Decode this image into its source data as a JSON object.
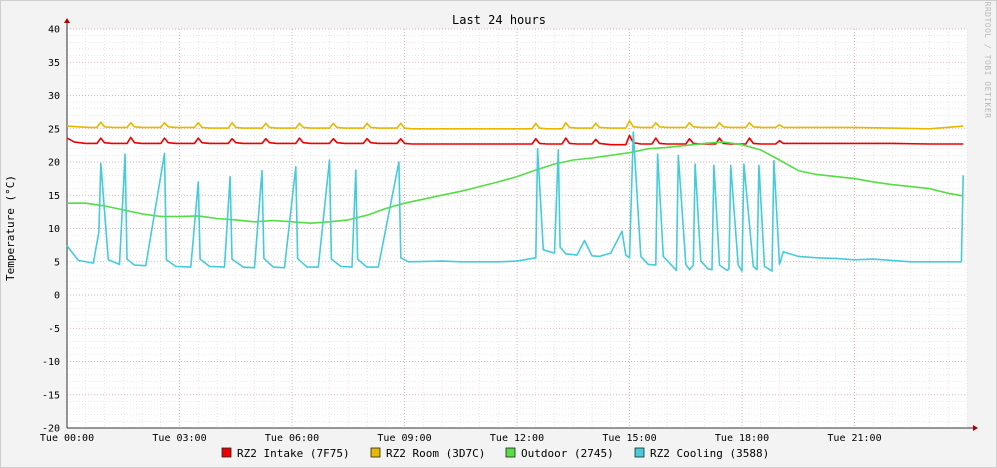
{
  "chart_data": {
    "type": "line",
    "title": "Last 24 hours",
    "ylabel": "Temperature (°C)",
    "xlabel": "",
    "watermark": "RRDTOOL / TOBI OETIKER",
    "ylim": [
      -20,
      40
    ],
    "yticks": [
      -20,
      -15,
      -10,
      -5,
      0,
      5,
      10,
      15,
      20,
      25,
      30,
      35,
      40
    ],
    "xlim": [
      0,
      24
    ],
    "xticks": [
      {
        "hour": 0,
        "label": "Tue 00:00"
      },
      {
        "hour": 3,
        "label": "Tue 03:00"
      },
      {
        "hour": 6,
        "label": "Tue 06:00"
      },
      {
        "hour": 9,
        "label": "Tue 09:00"
      },
      {
        "hour": 12,
        "label": "Tue 12:00"
      },
      {
        "hour": 15,
        "label": "Tue 15:00"
      },
      {
        "hour": 18,
        "label": "Tue 18:00"
      },
      {
        "hour": 21,
        "label": "Tue 21:00"
      }
    ],
    "grid": true,
    "legend_position": "bottom",
    "series": [
      {
        "name": "RZ2 Intake (7F75)",
        "color": "#ee0000",
        "x": [
          0,
          0.2,
          0.5,
          0.8,
          0.9,
          1.0,
          1.2,
          1.6,
          1.7,
          1.8,
          2.0,
          2.5,
          2.6,
          2.7,
          2.9,
          3.4,
          3.5,
          3.6,
          3.8,
          4.3,
          4.4,
          4.5,
          4.7,
          5.2,
          5.3,
          5.4,
          5.6,
          6.1,
          6.2,
          6.3,
          6.5,
          7.0,
          7.1,
          7.2,
          7.4,
          7.9,
          8.0,
          8.1,
          8.3,
          8.8,
          8.9,
          9.0,
          9.2,
          10,
          11,
          12.4,
          12.5,
          12.6,
          12.8,
          13.2,
          13.3,
          13.4,
          13.6,
          14.0,
          14.1,
          14.2,
          14.5,
          14.9,
          15.0,
          15.1,
          15.3,
          15.6,
          15.7,
          15.8,
          16.0,
          16.5,
          16.6,
          16.7,
          16.9,
          17.3,
          17.4,
          17.5,
          17.7,
          18.1,
          18.2,
          18.3,
          18.5,
          18.9,
          19.0,
          19.1,
          19.3,
          20,
          21,
          22,
          23,
          23.9
        ],
        "values": [
          23.6,
          23.0,
          22.8,
          22.8,
          23.6,
          22.9,
          22.8,
          22.8,
          23.7,
          22.9,
          22.8,
          22.8,
          23.6,
          22.9,
          22.8,
          22.8,
          23.6,
          22.9,
          22.8,
          22.8,
          23.5,
          22.9,
          22.8,
          22.8,
          23.5,
          22.9,
          22.8,
          22.8,
          23.6,
          22.9,
          22.8,
          22.8,
          23.5,
          22.9,
          22.8,
          22.8,
          23.5,
          22.9,
          22.8,
          22.8,
          23.5,
          22.8,
          22.7,
          22.7,
          22.7,
          22.7,
          23.5,
          22.8,
          22.7,
          22.7,
          23.6,
          22.8,
          22.7,
          22.7,
          23.4,
          22.8,
          22.6,
          22.6,
          24.0,
          22.9,
          22.7,
          22.7,
          23.6,
          22.8,
          22.7,
          22.7,
          23.5,
          22.8,
          22.7,
          22.7,
          23.6,
          22.8,
          22.7,
          22.7,
          23.6,
          22.8,
          22.7,
          22.7,
          23.2,
          22.8,
          22.8,
          22.8,
          22.8,
          22.8,
          22.7,
          22.7
        ]
      },
      {
        "name": "RZ2 Room (3D7C)",
        "color": "#e6b800",
        "x": [
          0,
          0.3,
          0.6,
          0.8,
          0.9,
          1.0,
          1.2,
          1.6,
          1.7,
          1.8,
          2.0,
          2.5,
          2.6,
          2.7,
          2.9,
          3.4,
          3.5,
          3.6,
          3.8,
          4.3,
          4.4,
          4.5,
          4.7,
          5.2,
          5.3,
          5.4,
          5.6,
          6.1,
          6.2,
          6.3,
          6.5,
          7.0,
          7.1,
          7.2,
          7.4,
          7.9,
          8.0,
          8.1,
          8.3,
          8.8,
          8.9,
          9.0,
          9.2,
          10,
          11,
          12.4,
          12.5,
          12.6,
          12.8,
          13.2,
          13.3,
          13.4,
          13.6,
          14.0,
          14.1,
          14.2,
          14.5,
          14.9,
          15.0,
          15.1,
          15.3,
          15.6,
          15.7,
          15.8,
          16.0,
          16.5,
          16.6,
          16.7,
          16.9,
          17.3,
          17.4,
          17.5,
          17.7,
          18.1,
          18.2,
          18.3,
          18.5,
          18.9,
          19.0,
          19.1,
          19.3,
          20,
          21,
          22,
          23,
          23.9
        ],
        "values": [
          25.4,
          25.3,
          25.2,
          25.2,
          26.0,
          25.3,
          25.2,
          25.2,
          25.9,
          25.3,
          25.2,
          25.2,
          25.9,
          25.3,
          25.2,
          25.2,
          25.9,
          25.2,
          25.1,
          25.1,
          25.9,
          25.2,
          25.1,
          25.1,
          25.8,
          25.2,
          25.1,
          25.1,
          25.8,
          25.2,
          25.1,
          25.1,
          25.8,
          25.2,
          25.1,
          25.1,
          25.8,
          25.2,
          25.1,
          25.1,
          25.8,
          25.1,
          25.0,
          25.0,
          25.0,
          25.0,
          25.8,
          25.1,
          25.0,
          25.0,
          25.9,
          25.2,
          25.1,
          25.1,
          25.8,
          25.2,
          25.1,
          25.1,
          26.2,
          25.3,
          25.2,
          25.2,
          25.9,
          25.3,
          25.2,
          25.2,
          25.9,
          25.3,
          25.2,
          25.2,
          25.9,
          25.3,
          25.2,
          25.2,
          25.9,
          25.3,
          25.2,
          25.2,
          25.6,
          25.2,
          25.2,
          25.2,
          25.2,
          25.1,
          25.0,
          25.4
        ]
      },
      {
        "name": "Outdoor (2745)",
        "color": "#55dd44",
        "x": [
          0,
          0.5,
          1.0,
          1.5,
          2.0,
          2.5,
          3.0,
          3.5,
          4.0,
          4.5,
          5.0,
          5.5,
          6.0,
          6.5,
          7.0,
          7.5,
          8.0,
          8.5,
          9.0,
          9.5,
          10.0,
          10.5,
          11.0,
          11.5,
          12.0,
          12.5,
          13.0,
          13.5,
          14.0,
          14.5,
          15.0,
          15.5,
          16.0,
          16.5,
          17.0,
          17.5,
          18.0,
          18.5,
          19.0,
          19.5,
          20.0,
          20.5,
          21.0,
          21.5,
          22.0,
          22.5,
          23.0,
          23.5,
          23.9
        ],
        "values": [
          13.8,
          13.8,
          13.4,
          12.8,
          12.2,
          11.8,
          11.8,
          11.9,
          11.5,
          11.3,
          11.0,
          11.2,
          11.0,
          10.8,
          11.0,
          11.3,
          12.0,
          13.0,
          13.8,
          14.4,
          15.0,
          15.6,
          16.3,
          17.0,
          17.8,
          18.8,
          19.7,
          20.3,
          20.6,
          21.0,
          21.4,
          22.0,
          22.2,
          22.5,
          22.8,
          23.0,
          22.6,
          21.8,
          20.3,
          18.7,
          18.1,
          17.8,
          17.5,
          17.0,
          16.6,
          16.3,
          16.0,
          15.3,
          14.9
        ]
      },
      {
        "name": "RZ2 Cooling (3588)",
        "color": "#44ccdd",
        "x": [
          0,
          0.3,
          0.7,
          0.85,
          0.9,
          1.1,
          1.4,
          1.55,
          1.6,
          1.8,
          2.1,
          2.6,
          2.65,
          2.9,
          3.3,
          3.5,
          3.55,
          3.8,
          4.2,
          4.35,
          4.4,
          4.7,
          5.0,
          5.2,
          5.25,
          5.5,
          5.8,
          6.1,
          6.15,
          6.4,
          6.7,
          7.0,
          7.05,
          7.3,
          7.6,
          7.7,
          7.75,
          8.0,
          8.3,
          8.85,
          8.9,
          9.1,
          10,
          10.5,
          11,
          11.5,
          12.0,
          12.5,
          12.55,
          12.7,
          13.0,
          13.1,
          13.15,
          13.3,
          13.6,
          13.8,
          14.0,
          14.2,
          14.5,
          14.8,
          14.9,
          15.0,
          15.1,
          15.3,
          15.5,
          15.7,
          15.75,
          15.9,
          16.0,
          16.25,
          16.3,
          16.5,
          16.6,
          16.7,
          16.75,
          16.9,
          17.1,
          17.2,
          17.25,
          17.4,
          17.6,
          17.65,
          17.7,
          17.9,
          18.0,
          18.05,
          18.3,
          18.4,
          18.45,
          18.6,
          18.8,
          18.85,
          19.0,
          19.1,
          19.5,
          20.0,
          20.5,
          21.0,
          21.5,
          22.0,
          22.5,
          23.0,
          23.5,
          23.85,
          23.9
        ],
        "values": [
          7.4,
          5.2,
          4.8,
          9.5,
          19.8,
          5.3,
          4.6,
          21.2,
          5.4,
          4.5,
          4.4,
          21.3,
          5.3,
          4.3,
          4.2,
          17.0,
          5.4,
          4.3,
          4.2,
          17.8,
          5.4,
          4.2,
          4.1,
          18.7,
          5.5,
          4.2,
          4.1,
          19.3,
          5.5,
          4.2,
          4.2,
          20.3,
          5.4,
          4.3,
          4.2,
          18.8,
          5.4,
          4.2,
          4.2,
          20.0,
          5.6,
          5.0,
          5.1,
          5.0,
          5.0,
          5.0,
          5.1,
          5.6,
          22.0,
          6.8,
          6.3,
          21.8,
          7.2,
          6.2,
          6.0,
          8.2,
          5.9,
          5.8,
          6.3,
          9.6,
          6.0,
          5.6,
          24.5,
          5.8,
          4.6,
          4.5,
          21.2,
          5.8,
          5.2,
          3.7,
          21.0,
          4.6,
          3.8,
          4.5,
          19.7,
          5.1,
          3.9,
          3.8,
          19.5,
          4.5,
          3.7,
          3.9,
          19.5,
          4.5,
          3.6,
          19.7,
          4.3,
          3.8,
          19.5,
          4.3,
          3.6,
          20.2,
          4.6,
          6.5,
          5.8,
          5.6,
          5.5,
          5.3,
          5.4,
          5.2,
          5.0,
          5.0,
          5.0,
          5.0,
          18.0
        ]
      }
    ]
  }
}
